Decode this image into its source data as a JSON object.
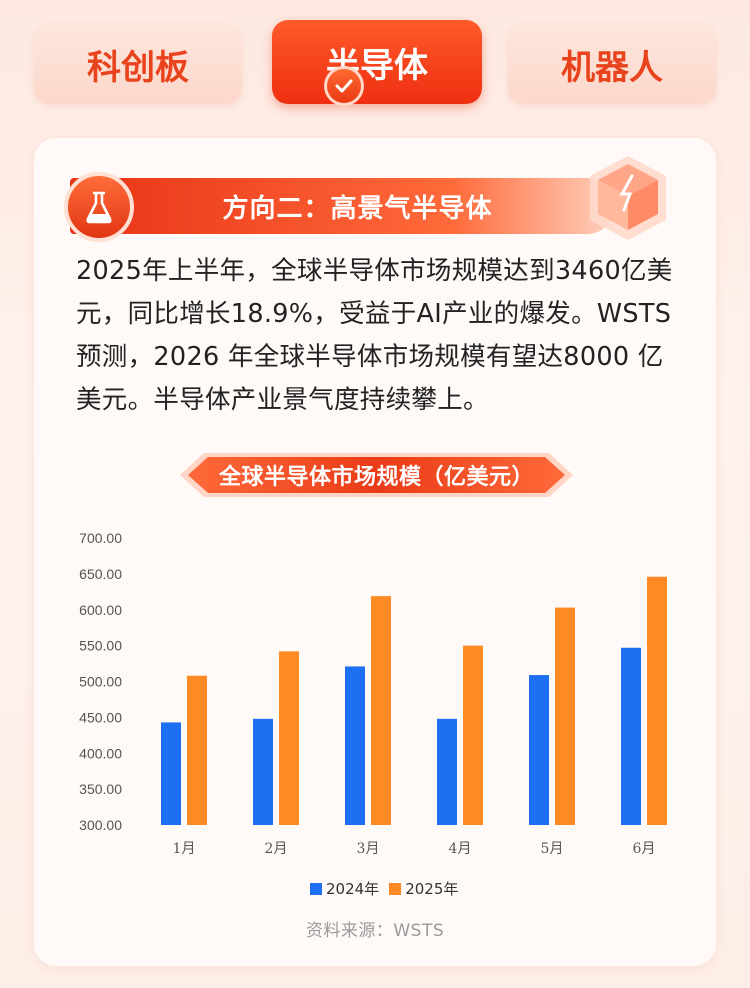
{
  "tabs": [
    {
      "label": "科创板"
    },
    {
      "label": "半导体"
    },
    {
      "label": "机器人"
    }
  ],
  "section": {
    "heading": "方向二：高景气半导体",
    "intro": "2025年上半年，全球半导体市场规模达到3460亿美元，同比增长18.9%，受益于AI产业的爆发。WSTS 预测，2026 年全球半导体市场规模有望达8000 亿美元。半导体产业景气度持续攀上。"
  },
  "colors": {
    "accent": "#e8431c",
    "series_2024": "#1f6ff2",
    "series_2025": "#ff8a24"
  },
  "icons": [
    "check-icon",
    "flask-icon",
    "cube-icon"
  ],
  "chart_data": {
    "type": "bar",
    "title": "全球半导体市场规模（亿美元）",
    "xlabel": "",
    "ylabel": "",
    "categories": [
      "1月",
      "2月",
      "3月",
      "4月",
      "5月",
      "6月"
    ],
    "series": [
      {
        "name": "2024年",
        "values": [
          443,
          448,
          521,
          448,
          509,
          547
        ]
      },
      {
        "name": "2025年",
        "values": [
          508,
          542,
          619,
          550,
          603,
          646
        ]
      }
    ],
    "ylim": [
      300,
      700
    ],
    "yticks": [
      "700.00",
      "650.00",
      "600.00",
      "550.00",
      "500.00",
      "450.00",
      "400.00",
      "350.00",
      "300.00"
    ],
    "grid": false,
    "legend": "bottom"
  },
  "source": "资料来源：WSTS"
}
